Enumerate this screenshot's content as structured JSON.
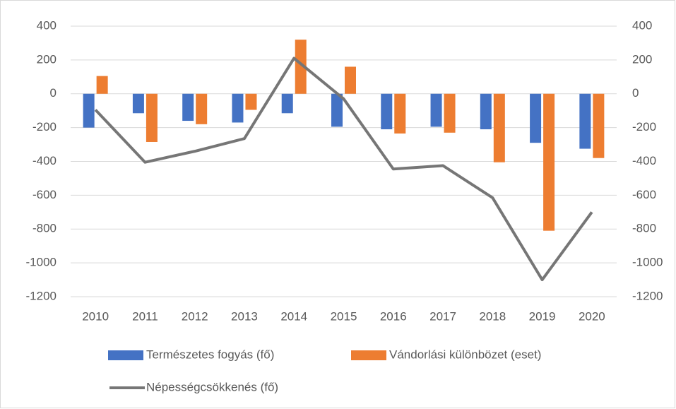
{
  "chart_data": {
    "type": "bar-line",
    "categories": [
      "2010",
      "2011",
      "2012",
      "2013",
      "2014",
      "2015",
      "2016",
      "2017",
      "2018",
      "2019",
      "2020"
    ],
    "series": [
      {
        "name": "Természetes fogyás (fő)",
        "type": "bar",
        "color": "#4472c4",
        "values": [
          -200,
          -115,
          -160,
          -170,
          -115,
          -195,
          -210,
          -195,
          -210,
          -290,
          -325
        ]
      },
      {
        "name": "Vándorlási különbözet (eset)",
        "type": "bar",
        "color": "#ed7d31",
        "values": [
          105,
          -285,
          -180,
          -95,
          320,
          160,
          -235,
          -230,
          -405,
          -810,
          -380
        ]
      },
      {
        "name": "Népességcsökkenés (fő)",
        "type": "line",
        "axis": "y2",
        "color": "#767676",
        "values": [
          -95,
          -405,
          -340,
          -265,
          210,
          -30,
          -445,
          -425,
          -615,
          -1100,
          -700
        ]
      }
    ],
    "ylim": [
      -1200,
      400
    ],
    "yticks": [
      -1200,
      -1000,
      -800,
      -600,
      -400,
      -200,
      0,
      200,
      400
    ],
    "y2lim": [
      -1200,
      400
    ],
    "y2ticks": [
      -1200,
      -1000,
      -800,
      -600,
      -400,
      -200,
      0,
      200,
      400
    ],
    "grid": true,
    "legend": "bottom"
  }
}
